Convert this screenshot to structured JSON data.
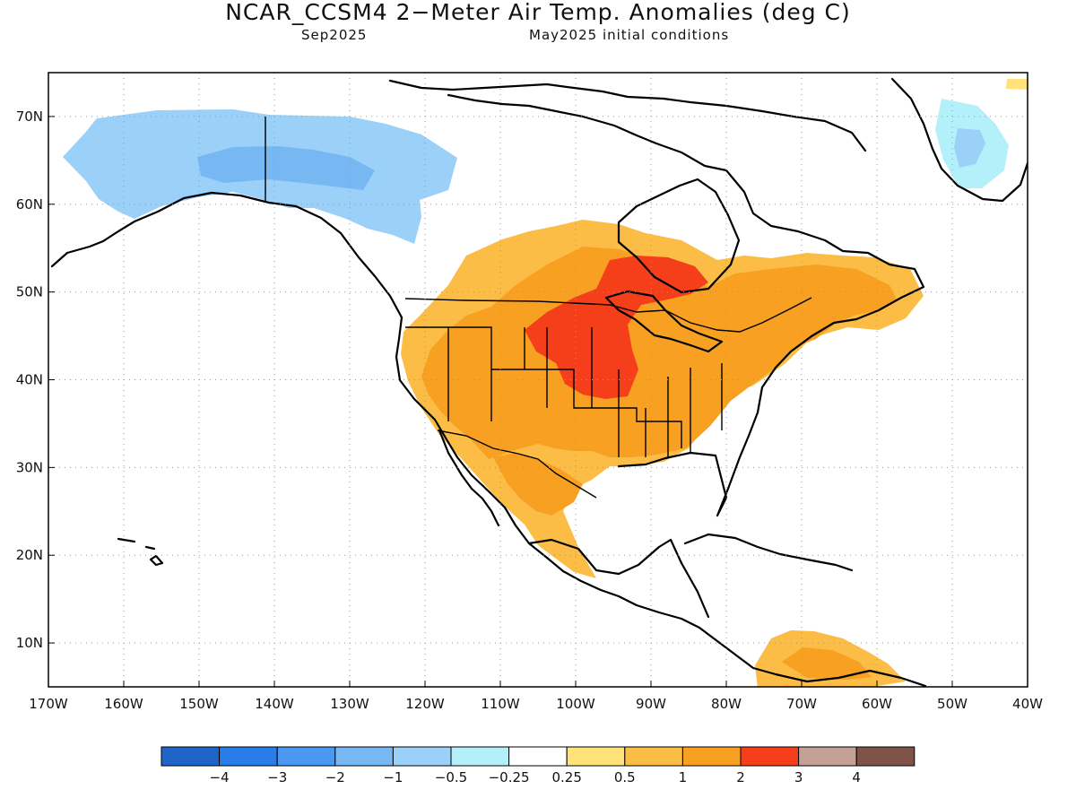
{
  "header": {
    "title": "NCAR_CCSM4 2−Meter Air Temp. Anomalies (deg C)",
    "valid_month": "Sep2025",
    "initial_conditions": "May2025 initial conditions"
  },
  "map": {
    "lat_range": [
      5,
      75
    ],
    "lon_range": [
      -170,
      -40
    ],
    "lat_ticks": [
      "10N",
      "20N",
      "30N",
      "40N",
      "50N",
      "60N",
      "70N"
    ],
    "lon_ticks": [
      "170W",
      "160W",
      "150W",
      "140W",
      "130W",
      "120W",
      "110W",
      "100W",
      "90W",
      "80W",
      "70W",
      "60W",
      "50W",
      "40W"
    ],
    "grid": "dotted"
  },
  "colorbar": {
    "colors": [
      "#1f64c8",
      "#2a7de8",
      "#4a98f0",
      "#77b8f2",
      "#9bd0f8",
      "#b4f0fa",
      "#ffffff",
      "#ffe27a",
      "#fbbd45",
      "#f7a021",
      "#f53f1b",
      "#c4a096",
      "#805349"
    ],
    "labels": [
      "−4",
      "−3",
      "−2",
      "−1",
      "−0.5",
      "−0.25",
      "0.25",
      "0.5",
      "1",
      "2",
      "3",
      "4"
    ]
  },
  "anomaly_regions": [
    {
      "name": "alaska-cool",
      "level": "-1",
      "color": "#9bd0f8"
    },
    {
      "name": "alaska-cool-core",
      "level": "-2",
      "color": "#77b8f2"
    },
    {
      "name": "greenland-cool",
      "level": "-0.5",
      "color": "#b4f0fa"
    },
    {
      "name": "western-us-warm",
      "level": "1",
      "color": "#f7a021"
    },
    {
      "name": "northern-plains-hot",
      "level": "3",
      "color": "#f53f1b"
    },
    {
      "name": "great-lakes-hot",
      "level": "3",
      "color": "#f53f1b"
    },
    {
      "name": "quebec-warm",
      "level": "1",
      "color": "#f7a021"
    },
    {
      "name": "mexico-warm",
      "level": "0.5",
      "color": "#ffe27a"
    },
    {
      "name": "south-america-warm",
      "level": "1",
      "color": "#f7a021"
    }
  ]
}
